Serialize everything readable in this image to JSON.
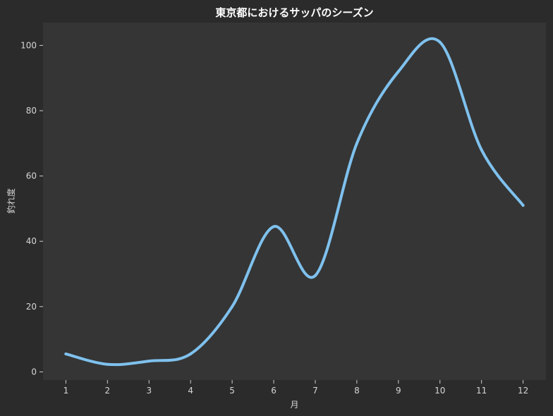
{
  "chart_data": {
    "type": "line",
    "title": "東京都におけるサッパのシーズン",
    "xlabel": "月",
    "ylabel": "釣れ度",
    "x": [
      1,
      2,
      3,
      4,
      5,
      6,
      7,
      8,
      9,
      10,
      11,
      12
    ],
    "xticks": [
      "1",
      "2",
      "3",
      "4",
      "5",
      "6",
      "7",
      "8",
      "9",
      "10",
      "11",
      "12"
    ],
    "yticks": [
      "0",
      "20",
      "40",
      "60",
      "80",
      "100"
    ],
    "xlim": [
      0.45,
      12.55
    ],
    "ylim": [
      -2.5,
      107
    ],
    "grid": false,
    "series": [
      {
        "values": [
          5.5,
          2.3,
          3.3,
          5.5,
          20,
          44.5,
          29.5,
          70,
          92,
          101,
          68,
          51
        ],
        "color": "#7fc1ee"
      }
    ],
    "colors": {
      "background": "#2b2b2b",
      "plot_area": "#353535",
      "text": "#d6d6d6",
      "title": "#ffffff"
    }
  }
}
